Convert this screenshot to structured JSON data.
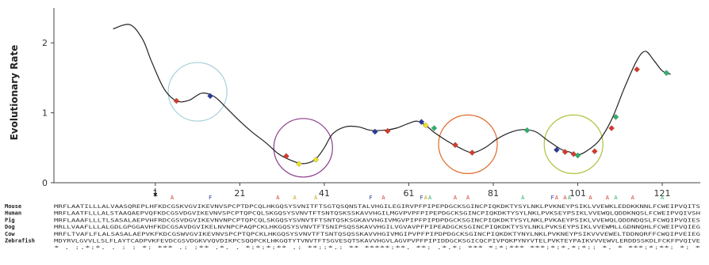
{
  "chart_data": {
    "type": "line",
    "ylabel": "Evolutionary Rate",
    "xlabel": "",
    "xlim": [
      -23,
      130
    ],
    "ylim": [
      0,
      2.5
    ],
    "y_ticks": [
      0,
      1,
      2
    ],
    "x_ticks": [
      1,
      21,
      41,
      61,
      81,
      101,
      121
    ],
    "series": [
      {
        "x": [
          -9,
          -5,
          -2,
          0,
          3,
          6,
          9,
          12,
          15,
          18,
          21,
          24,
          27,
          30,
          32,
          35,
          37,
          39,
          41,
          43,
          46,
          49,
          52,
          55,
          58,
          61,
          63,
          65,
          67,
          70,
          73,
          76,
          79,
          82,
          85,
          88,
          91,
          94,
          97,
          99,
          101,
          103,
          106,
          109,
          112,
          115,
          117,
          119,
          121,
          123
        ],
        "y": [
          2.2,
          2.26,
          2.05,
          1.75,
          1.35,
          1.17,
          1.18,
          1.28,
          1.23,
          1.06,
          0.88,
          0.72,
          0.58,
          0.42,
          0.35,
          0.28,
          0.28,
          0.34,
          0.5,
          0.7,
          0.8,
          0.8,
          0.75,
          0.75,
          0.78,
          0.85,
          0.88,
          0.82,
          0.72,
          0.6,
          0.5,
          0.43,
          0.5,
          0.63,
          0.72,
          0.76,
          0.73,
          0.6,
          0.48,
          0.44,
          0.4,
          0.45,
          0.6,
          0.9,
          1.35,
          1.75,
          1.88,
          1.75,
          1.6,
          1.55
        ]
      }
    ],
    "markers": [
      {
        "x": 6,
        "y": 1.17,
        "color": "#d63a2a"
      },
      {
        "x": 14,
        "y": 1.24,
        "color": "#2a3a9c"
      },
      {
        "x": 32,
        "y": 0.38,
        "color": "#d63a2a"
      },
      {
        "x": 35,
        "y": 0.27,
        "color": "#f0e020"
      },
      {
        "x": 39,
        "y": 0.33,
        "color": "#f0e020"
      },
      {
        "x": 53,
        "y": 0.73,
        "color": "#2a3a9c"
      },
      {
        "x": 56,
        "y": 0.74,
        "color": "#d63a2a"
      },
      {
        "x": 64,
        "y": 0.87,
        "color": "#2a3a9c"
      },
      {
        "x": 65,
        "y": 0.82,
        "color": "#f0e020"
      },
      {
        "x": 67,
        "y": 0.78,
        "color": "#2db06a"
      },
      {
        "x": 72,
        "y": 0.54,
        "color": "#d63a2a"
      },
      {
        "x": 76,
        "y": 0.43,
        "color": "#d63a2a"
      },
      {
        "x": 89,
        "y": 0.75,
        "color": "#2db06a"
      },
      {
        "x": 96,
        "y": 0.47,
        "color": "#2a3a9c"
      },
      {
        "x": 98,
        "y": 0.44,
        "color": "#d63a2a"
      },
      {
        "x": 100,
        "y": 0.41,
        "color": "#d63a2a"
      },
      {
        "x": 101,
        "y": 0.39,
        "color": "#2db06a"
      },
      {
        "x": 105,
        "y": 0.45,
        "color": "#d63a2a"
      },
      {
        "x": 109,
        "y": 0.78,
        "color": "#d63a2a"
      },
      {
        "x": 110,
        "y": 0.94,
        "color": "#2db06a"
      },
      {
        "x": 115,
        "y": 1.62,
        "color": "#d63a2a"
      },
      {
        "x": 122,
        "y": 1.57,
        "color": "#2db06a"
      }
    ],
    "circles": [
      {
        "cx": 11,
        "cy": 1.3,
        "color": "#a8cfd8"
      },
      {
        "cx": 36,
        "cy": 0.5,
        "color": "#8a3a8a"
      },
      {
        "cx": 75,
        "cy": 0.55,
        "color": "#e06a28"
      },
      {
        "cx": 100,
        "cy": 0.55,
        "color": "#a8c43a"
      }
    ],
    "alignment": {
      "marks": [
        {
          "x": 5,
          "letter": "A",
          "color": "#d63a2a"
        },
        {
          "x": 14,
          "letter": "F",
          "color": "#2a3a9c"
        },
        {
          "x": 30,
          "letter": "A",
          "color": "#d63a2a"
        },
        {
          "x": 34,
          "letter": "A",
          "color": "#c8a814"
        },
        {
          "x": 39,
          "letter": "A",
          "color": "#c8a814"
        },
        {
          "x": 52,
          "letter": "F",
          "color": "#2a3a9c"
        },
        {
          "x": 55,
          "letter": "A",
          "color": "#d63a2a"
        },
        {
          "x": 64,
          "letter": "F",
          "color": "#2a3a9c"
        },
        {
          "x": 65,
          "letter": "A",
          "color": "#c8a814"
        },
        {
          "x": 66,
          "letter": "A",
          "color": "#2db06a"
        },
        {
          "x": 72,
          "letter": "A",
          "color": "#d63a2a"
        },
        {
          "x": 75,
          "letter": "A",
          "color": "#d63a2a"
        },
        {
          "x": 88,
          "letter": "A",
          "color": "#2db06a"
        },
        {
          "x": 95,
          "letter": "F",
          "color": "#2a3a9c"
        },
        {
          "x": 96,
          "letter": "A",
          "color": "#d63a2a"
        },
        {
          "x": 98,
          "letter": "A",
          "color": "#d63a2a"
        },
        {
          "x": 99,
          "letter": "A",
          "color": "#2db06a"
        },
        {
          "x": 104,
          "letter": "A",
          "color": "#d63a2a"
        },
        {
          "x": 108,
          "letter": "A",
          "color": "#d63a2a"
        },
        {
          "x": 110,
          "letter": "A",
          "color": "#2db06a"
        },
        {
          "x": 114,
          "letter": "A",
          "color": "#d63a2a"
        },
        {
          "x": 121,
          "letter": "A",
          "color": "#2db06a"
        }
      ],
      "rows": [
        {
          "name": "Mouse",
          "seq": "MRFLAATILLLALVAASQREPLHFKDCGSKVGVIKEVNVSPCPTDPCQLHKGQSYSVNITFTSGTQSQNSTALVHGILEGIRVPFPIPEPDGCKSGINCPIQKDKTYSYLNKLPVKNEYPSIKLVVEWKLEDDKKNNLFCWEIPVQITS"
        },
        {
          "name": "Human",
          "seq": "MRFLAATFLLLALSTAAQAEPVQFKDCGSVDGVIKEVNVSPCPTQPCQLSKGQSYSVNVTFTSNTQSKSSKAVVHGILMGVPVPFPIPEPDGCKSGINCPIQKDKTYSYLNKLPVKSEYPSIKLVVEWQLQDDKNQSLFCWEIPVQIVSH"
        },
        {
          "name": "Pig",
          "seq": "MRFLAAAFLLLTLSASALAEPVHFRDCGSVDGVIKEVNVNPCPTQPCQLSKGQSYSVNVTFTSNTQSKSGKAVVHGIVMGVPIPFPIPDPDGCKSGINCPIQKDKTYSYLNKLPVKAEYPSIKLVVEWQLQDDNDQSLFCWQIPVQIES"
        },
        {
          "name": "Dog",
          "seq": "MRLLVAAFLLLALGDLGPGGAVHFKDCGSAVDGVIKELNVNPCPAQPCKLHKGQSYSVNVTFTSNIPSQSSKAVVHGILVGVAVPFPIPEADGCKSGINCPIQKDKTYSYLNKLPVKSEYPSIKLVVEWMLLGDNNQHLFCWEIPVQIEG"
        },
        {
          "name": "Cow",
          "seq": "MRFLTVAFLFLALSASALAEPVKFKDCGSWVGVIKEVNVSPCPTQPCKLHKGQSYSVNVTFTSNTQSQSSKAVVHGIVMGIPVPFPIPDPDGCKSGINCPIQKDKTYNYLNKLPVKNEYPSIKVVVEWELTDDNQRFFCWQIPVEIEG"
        },
        {
          "name": "Zebrafish",
          "seq": "MDYRVLGVVLLSLFLAYTCADPVKFEVDCGSVDGKVVQVDIKPCSQQPCKLHKGQTYTVNVTFTSGVESQTSKAVVHGVLAGVPVPFPIPIDDGCKSGICQCPIVPQKPYNYVTELPVKTEYPAIKVVVEWVLERDDSSKDLFCKFPVQIVE"
        },
        {
          "name": "",
          "seq": "*  .   :.*:*.    .  : : *:  ***  .: :** .*. . *:*:*:** .: **::*.: **  *****:**. **:  .*.*: ***  *:*:*** ***:*:*.*:*:: *.  *  ***:*:**: *: *"
        }
      ]
    }
  }
}
